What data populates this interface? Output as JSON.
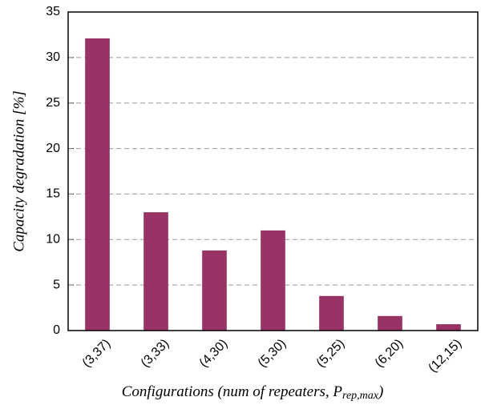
{
  "chart_data": {
    "type": "bar",
    "y_label": "Capacity degradation [%]",
    "x_label": "Configurations (num of repeaters, P",
    "x_label_sub": "rep,max",
    "x_label_end": ")",
    "categories": [
      "(3,37)",
      "(3,33)",
      "(4,30)",
      "(5,30)",
      "(5,25)",
      "(6,20)",
      "(12,15)"
    ],
    "values": [
      32.1,
      13,
      8.8,
      11,
      3.8,
      1.6,
      0.7
    ],
    "color": "#993366",
    "ylim": [
      0,
      35
    ],
    "yticks": [
      0,
      5,
      10,
      15,
      20,
      25,
      30,
      35
    ],
    "grid": true
  }
}
